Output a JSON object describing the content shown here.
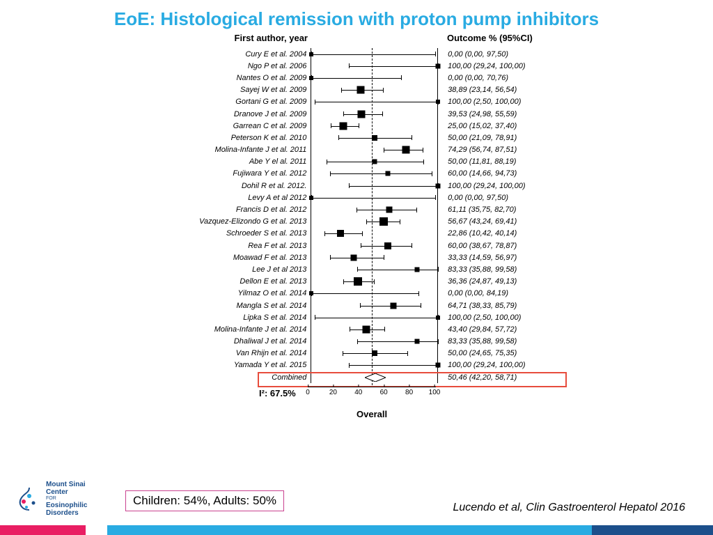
{
  "title": "EoE: Histological remission with proton pump inhibitors",
  "title_color": "#29abe2",
  "headers": {
    "left": "First author, year",
    "right": "Outcome % (95%CI)"
  },
  "reference_line_x": 50.46,
  "xlim": [
    0,
    100
  ],
  "xticks": [
    0,
    20,
    40,
    60,
    80,
    100
  ],
  "i2": "I²: 67.5%",
  "overall": "Overall",
  "combined": {
    "label": "Combined",
    "point": 50.46,
    "low": 42.2,
    "high": 58.71,
    "outcome": "50,46 (42,20, 58,71)"
  },
  "studies": [
    {
      "label": "Cury E et al. 2004",
      "p": 0,
      "lo": 0,
      "hi": 97.5,
      "out": "0,00 (0,00, 97,50)",
      "w": 6
    },
    {
      "label": "Ngo P et al. 2006",
      "p": 100,
      "lo": 29.24,
      "hi": 100,
      "out": "100,00 (29,24, 100,00)",
      "w": 7
    },
    {
      "label": "Nantes O et al. 2009",
      "p": 0,
      "lo": 0,
      "hi": 70.76,
      "out": "0,00 (0,00, 70,76)",
      "w": 6
    },
    {
      "label": "Sayej W et al. 2009",
      "p": 38.89,
      "lo": 23.14,
      "hi": 56.54,
      "out": "38,89 (23,14, 56,54)",
      "w": 11
    },
    {
      "label": "Gortani G et al. 2009",
      "p": 100,
      "lo": 2.5,
      "hi": 100,
      "out": "100,00 (2,50, 100,00)",
      "w": 6
    },
    {
      "label": "Dranove J et al. 2009",
      "p": 39.53,
      "lo": 24.98,
      "hi": 55.59,
      "out": "39,53 (24,98, 55,59)",
      "w": 11
    },
    {
      "label": "Garrean C et al. 2009",
      "p": 25,
      "lo": 15.02,
      "hi": 37.4,
      "out": "25,00 (15,02, 37,40)",
      "w": 11
    },
    {
      "label": "Peterson K et al. 2010",
      "p": 50,
      "lo": 21.09,
      "hi": 78.91,
      "out": "50,00 (21,09, 78,91)",
      "w": 8
    },
    {
      "label": "Molina-Infante J et al. 2011",
      "p": 74.29,
      "lo": 56.74,
      "hi": 87.51,
      "out": "74,29 (56,74, 87,51)",
      "w": 11
    },
    {
      "label": "Abe Y el al. 2011",
      "p": 50,
      "lo": 11.81,
      "hi": 88.19,
      "out": "50,00 (11,81, 88,19)",
      "w": 7
    },
    {
      "label": "Fujiwara Y et al. 2012",
      "p": 60,
      "lo": 14.66,
      "hi": 94.73,
      "out": "60,00 (14,66, 94,73)",
      "w": 7
    },
    {
      "label": "Dohil R et al. 2012.",
      "p": 100,
      "lo": 29.24,
      "hi": 100,
      "out": "100,00 (29,24, 100,00)",
      "w": 7
    },
    {
      "label": "Levy A et al 2012",
      "p": 0,
      "lo": 0,
      "hi": 97.5,
      "out": "0,00 (0,00, 97,50)",
      "w": 6
    },
    {
      "label": "Francis D et al. 2012",
      "p": 61.11,
      "lo": 35.75,
      "hi": 82.7,
      "out": "61,11 (35,75, 82,70)",
      "w": 9
    },
    {
      "label": "Vazquez-Elizondo G et al. 2013",
      "p": 56.67,
      "lo": 43.24,
      "hi": 69.41,
      "out": "56,67 (43,24, 69,41)",
      "w": 12
    },
    {
      "label": "Schroeder S et al. 2013",
      "p": 22.86,
      "lo": 10.42,
      "hi": 40.14,
      "out": "22,86 (10,42, 40,14)",
      "w": 10
    },
    {
      "label": "Rea F et al. 2013",
      "p": 60,
      "lo": 38.67,
      "hi": 78.87,
      "out": "60,00 (38,67, 78,87)",
      "w": 10
    },
    {
      "label": "Moawad F et al. 2013",
      "p": 33.33,
      "lo": 14.59,
      "hi": 56.97,
      "out": "33,33 (14,59, 56,97)",
      "w": 9
    },
    {
      "label": "Lee J et al 2013",
      "p": 83.33,
      "lo": 35.88,
      "hi": 99.58,
      "out": "83,33 (35,88, 99,58)",
      "w": 7
    },
    {
      "label": "Dellon E et al. 2013",
      "p": 36.36,
      "lo": 24.87,
      "hi": 49.13,
      "out": "36,36 (24,87, 49,13)",
      "w": 12
    },
    {
      "label": "Yilmaz O et al. 2014",
      "p": 0,
      "lo": 0,
      "hi": 84.19,
      "out": "0,00 (0,00, 84,19)",
      "w": 6
    },
    {
      "label": "Mangla S et al. 2014",
      "p": 64.71,
      "lo": 38.33,
      "hi": 85.79,
      "out": "64,71 (38,33, 85,79)",
      "w": 9
    },
    {
      "label": "Lipka S et al. 2014",
      "p": 100,
      "lo": 2.5,
      "hi": 100,
      "out": "100,00 (2,50, 100,00)",
      "w": 6
    },
    {
      "label": "Molina-Infante J et al. 2014",
      "p": 43.4,
      "lo": 29.84,
      "hi": 57.72,
      "out": "43,40 (29,84, 57,72)",
      "w": 11
    },
    {
      "label": "Dhaliwal J et al. 2014",
      "p": 83.33,
      "lo": 35.88,
      "hi": 99.58,
      "out": "83,33 (35,88, 99,58)",
      "w": 7
    },
    {
      "label": "Van Rhijn et al. 2014",
      "p": 50,
      "lo": 24.65,
      "hi": 75.35,
      "out": "50,00 (24,65, 75,35)",
      "w": 8
    },
    {
      "label": "Yamada Y et al. 2015",
      "p": 100,
      "lo": 29.24,
      "hi": 100,
      "out": "100,00 (29,24, 100,00)",
      "w": 7
    }
  ],
  "children_adults": "Children: 54%, Adults: 50%",
  "citation": "Lucendo et al, Clin Gastroenterol Hepatol 2016",
  "logo": {
    "line1": "Mount Sinai",
    "line2": "Center",
    "line3": "FOR",
    "line4": "Eosinophilic",
    "line5": "Disorders"
  },
  "bottom_bar_colors": [
    "#e91e63",
    "#ffffff",
    "#29abe2",
    "#1c4f8b"
  ],
  "bottom_bar_widths": [
    12,
    3,
    68,
    17
  ]
}
